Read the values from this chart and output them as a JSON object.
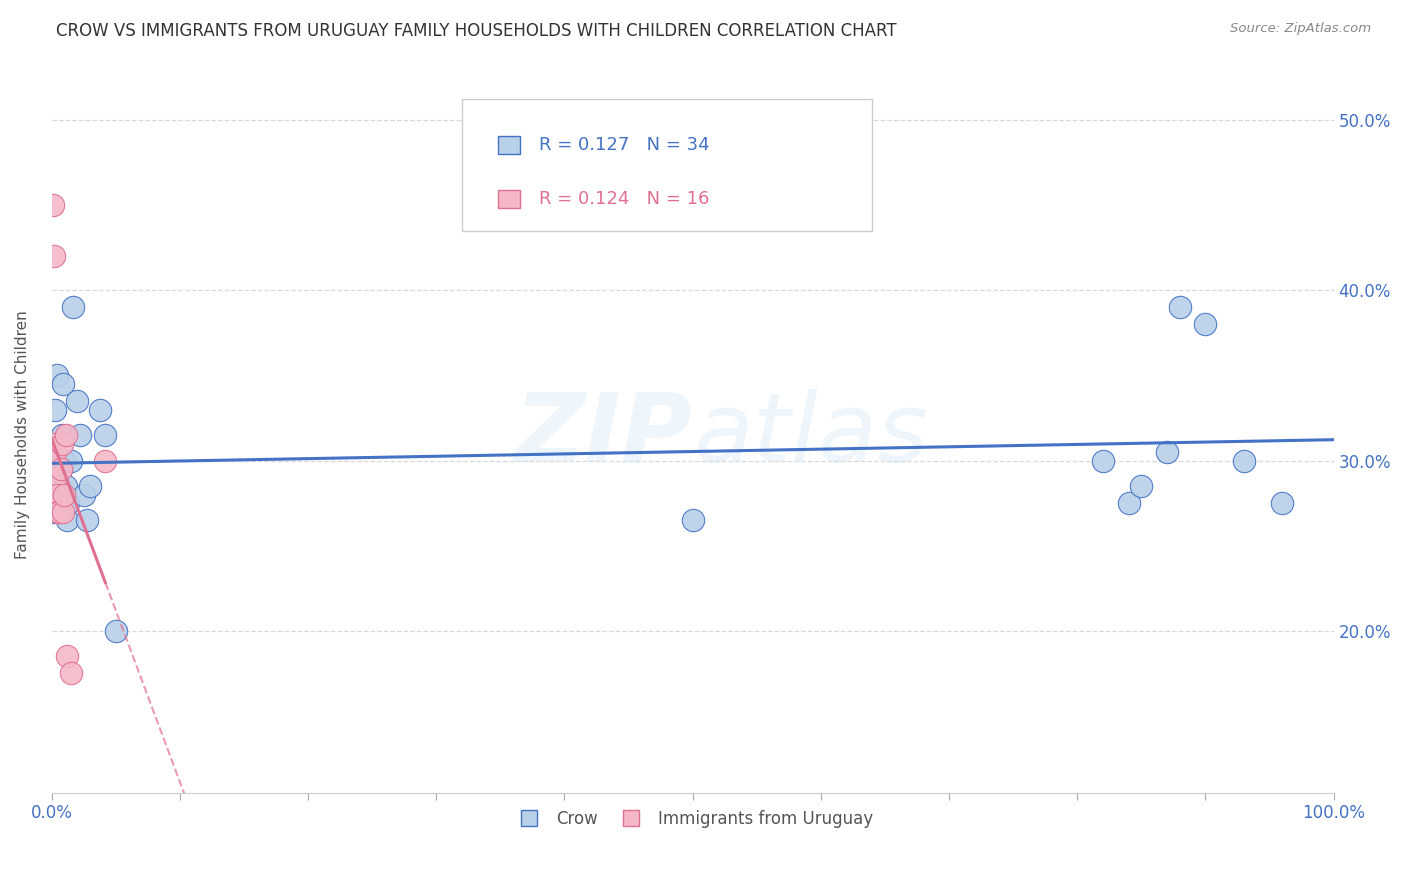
{
  "title": "CROW VS IMMIGRANTS FROM URUGUAY FAMILY HOUSEHOLDS WITH CHILDREN CORRELATION CHART",
  "source": "Source: ZipAtlas.com",
  "ylabel": "Family Households with Children",
  "watermark": "ZIPatlas",
  "crow_x": [
    0.001,
    0.002,
    0.003,
    0.003,
    0.004,
    0.005,
    0.005,
    0.006,
    0.007,
    0.008,
    0.009,
    0.01,
    0.011,
    0.012,
    0.013,
    0.015,
    0.017,
    0.02,
    0.022,
    0.025,
    0.028,
    0.03,
    0.038,
    0.042,
    0.05,
    0.5,
    0.82,
    0.84,
    0.85,
    0.87,
    0.88,
    0.9,
    0.93,
    0.96
  ],
  "crow_y": [
    0.27,
    0.28,
    0.295,
    0.33,
    0.35,
    0.3,
    0.275,
    0.285,
    0.295,
    0.315,
    0.345,
    0.3,
    0.285,
    0.265,
    0.275,
    0.3,
    0.39,
    0.335,
    0.315,
    0.28,
    0.265,
    0.285,
    0.33,
    0.315,
    0.2,
    0.265,
    0.3,
    0.275,
    0.285,
    0.305,
    0.39,
    0.38,
    0.3,
    0.275
  ],
  "uru_x": [
    0.001,
    0.002,
    0.002,
    0.003,
    0.003,
    0.004,
    0.005,
    0.006,
    0.007,
    0.008,
    0.009,
    0.01,
    0.011,
    0.012,
    0.015,
    0.042
  ],
  "uru_y": [
    0.45,
    0.42,
    0.31,
    0.305,
    0.29,
    0.28,
    0.27,
    0.27,
    0.295,
    0.31,
    0.27,
    0.28,
    0.315,
    0.185,
    0.175,
    0.3
  ],
  "crow_R": 0.127,
  "crow_N": 34,
  "uru_R": 0.124,
  "uru_N": 16,
  "xlim": [
    0.0,
    1.0
  ],
  "ylim": [
    0.105,
    0.525
  ],
  "crow_color": "#b8d0e8",
  "crow_line_color": "#4472c4",
  "uru_color": "#f4b8c8",
  "uru_line_color": "#e07090",
  "yticks": [
    0.2,
    0.3,
    0.4,
    0.5
  ],
  "grid_color": "#d8d8d8",
  "background_color": "#ffffff",
  "title_fontsize": 12,
  "axis_label_fontsize": 11,
  "tick_fontsize": 12
}
